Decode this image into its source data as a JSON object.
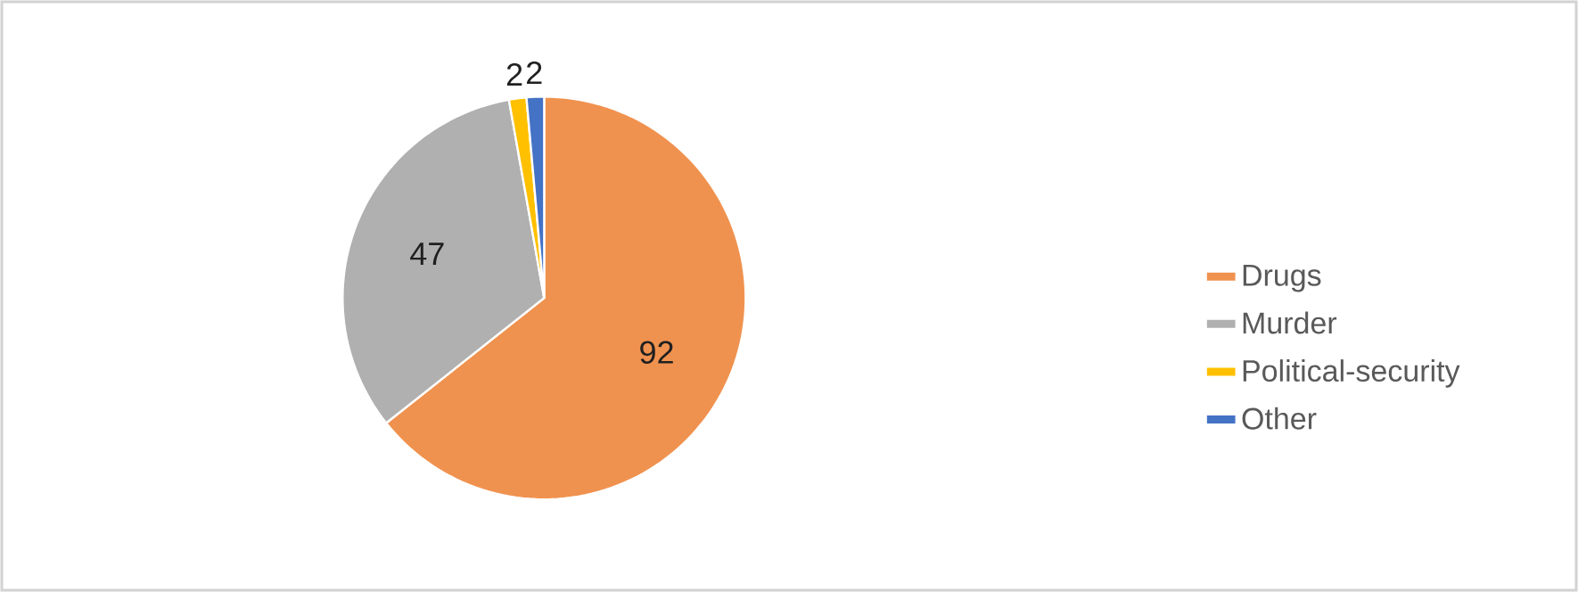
{
  "chart_data": {
    "type": "pie",
    "categories": [
      "Drugs",
      "Murder",
      "Political-security",
      "Other"
    ],
    "values": [
      92,
      47,
      2,
      2
    ],
    "colors": [
      "#f0924f",
      "#b0b0b0",
      "#ffc000",
      "#4472c4"
    ],
    "data_labels": true,
    "legend": "right"
  }
}
